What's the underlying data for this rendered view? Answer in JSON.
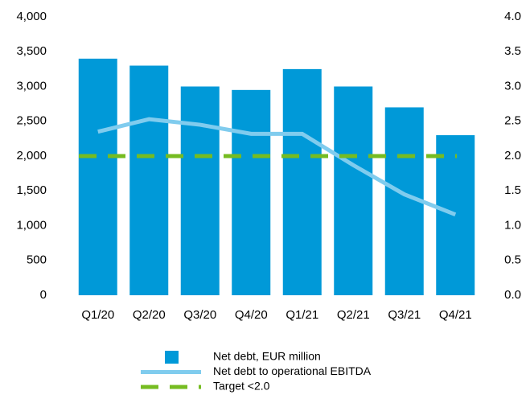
{
  "chart_data": {
    "type": "bar",
    "categories": [
      "Q1/20",
      "Q2/20",
      "Q3/20",
      "Q4/20",
      "Q1/21",
      "Q2/21",
      "Q3/21",
      "Q4/21"
    ],
    "series": [
      {
        "name": "Net debt, EUR million",
        "type": "bar",
        "color": "#0099d8",
        "values": [
          3400,
          3300,
          3000,
          2950,
          3250,
          3000,
          2700,
          2300
        ]
      },
      {
        "name": "Net debt to operational EBITDA",
        "type": "line",
        "axis": "y2",
        "color": "#80ccee",
        "values": [
          2.35,
          2.53,
          2.45,
          2.32,
          2.32,
          1.87,
          1.45,
          1.16
        ]
      },
      {
        "name": "Target <2.0",
        "type": "line",
        "axis": "y2",
        "dashed": true,
        "color": "#76bc21",
        "values": [
          2.0,
          2.0,
          2.0,
          2.0,
          2.0,
          2.0,
          2.0,
          2.0
        ]
      }
    ],
    "ylim": [
      0,
      4000
    ],
    "yticks": [
      0,
      500,
      {
        "value": 1000,
        "label": "1,000"
      },
      {
        "value": 1500,
        "label": "1,500"
      },
      {
        "value": 2000,
        "label": "2,000"
      },
      {
        "value": 2500,
        "label": "2,500"
      },
      {
        "value": 3000,
        "label": "3,000"
      },
      {
        "value": 3500,
        "label": "3,500"
      },
      {
        "value": 4000,
        "label": "4,000"
      }
    ],
    "y2lim": [
      0,
      4
    ],
    "y2ticks": [
      {
        "value": 0,
        "label": "0.0"
      },
      0.5,
      {
        "value": 1,
        "label": "1.0"
      },
      1.5,
      {
        "value": 2,
        "label": "2.0"
      },
      2.5,
      {
        "value": 3,
        "label": "3.0"
      },
      3.5,
      {
        "value": 4,
        "label": "4.0"
      }
    ],
    "legend": "bottom"
  }
}
